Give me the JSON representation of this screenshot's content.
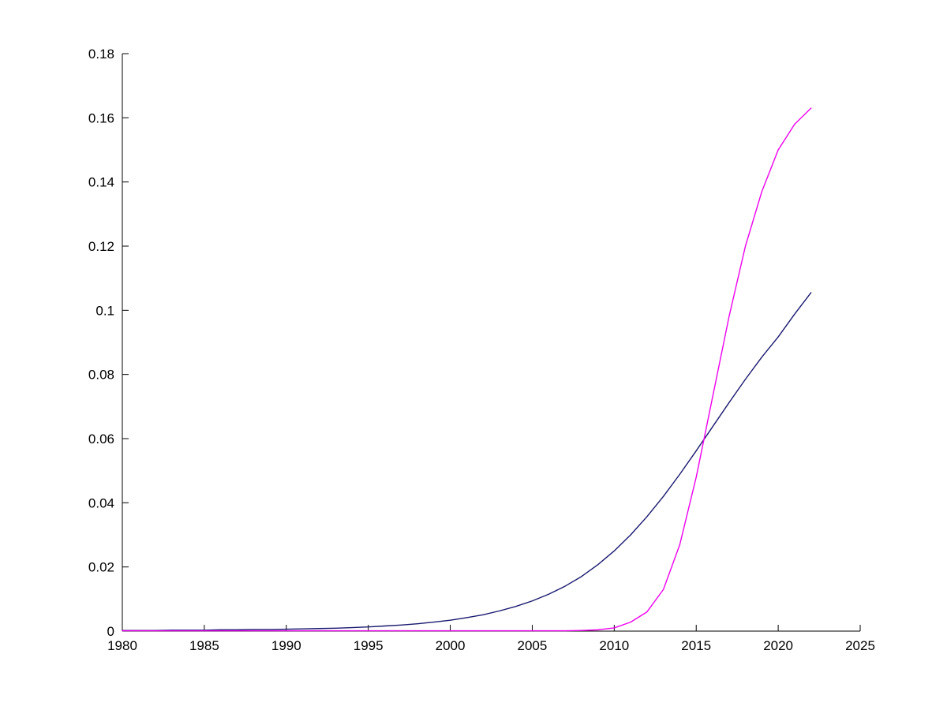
{
  "figure": {
    "background": "#ffffff",
    "axis_color": "#000000",
    "tick_length": 8
  },
  "chart_data": {
    "type": "line",
    "title": "",
    "xlabel": "",
    "ylabel": "",
    "xlim": [
      1980,
      2025
    ],
    "ylim": [
      0,
      0.18
    ],
    "grid": false,
    "legend": null,
    "x_ticks": [
      1980,
      1985,
      1990,
      1995,
      2000,
      2005,
      2010,
      2015,
      2020,
      2025
    ],
    "x_tick_labels": [
      "1980",
      "1985",
      "1990",
      "1995",
      "2000",
      "2005",
      "2010",
      "2015",
      "2020",
      "2025"
    ],
    "y_ticks": [
      0,
      0.02,
      0.04,
      0.06,
      0.08,
      0.1,
      0.12,
      0.14,
      0.16,
      0.18
    ],
    "y_tick_labels": [
      "0",
      "0.02",
      "0.04",
      "0.06",
      "0.08",
      "0.1",
      "0.12",
      "0.14",
      "0.16",
      "0.18"
    ],
    "x": [
      1980,
      1981,
      1982,
      1983,
      1984,
      1985,
      1986,
      1987,
      1988,
      1989,
      1990,
      1991,
      1992,
      1993,
      1994,
      1995,
      1996,
      1997,
      1998,
      1999,
      2000,
      2001,
      2002,
      2003,
      2004,
      2005,
      2006,
      2007,
      2008,
      2009,
      2010,
      2011,
      2012,
      2013,
      2014,
      2015,
      2016,
      2017,
      2018,
      2019,
      2020,
      2021,
      2022
    ],
    "series": [
      {
        "name": "dark-blue-curve",
        "color": "#191970",
        "values": [
          0.0002,
          0.0002,
          0.0002,
          0.0003,
          0.0003,
          0.0003,
          0.0004,
          0.0004,
          0.0005,
          0.0005,
          0.0006,
          0.0007,
          0.0008,
          0.0009,
          0.0011,
          0.0013,
          0.0016,
          0.0019,
          0.0023,
          0.0028,
          0.0034,
          0.0042,
          0.0051,
          0.0063,
          0.0077,
          0.0094,
          0.0115,
          0.014,
          0.017,
          0.0207,
          0.025,
          0.03,
          0.0357,
          0.042,
          0.0489,
          0.0562,
          0.0637,
          0.0712,
          0.0785,
          0.0854,
          0.0917,
          0.0988,
          0.1055
        ]
      },
      {
        "name": "magenta-curve",
        "color": "#EE00EE",
        "values": [
          0.0001,
          0.0001,
          0.0001,
          0.0001,
          0.0001,
          0.0001,
          0.0001,
          0.0001,
          0.0001,
          0.0001,
          0.0001,
          0.0001,
          0.0001,
          0.0001,
          0.0001,
          0.0001,
          0.0001,
          0.0001,
          0.0001,
          0.0001,
          0.0001,
          0.0001,
          0.0001,
          0.0001,
          0.0001,
          0.0001,
          0.0001,
          0.0001,
          0.0002,
          0.0004,
          0.001,
          0.0028,
          0.006,
          0.013,
          0.027,
          0.048,
          0.073,
          0.098,
          0.12,
          0.137,
          0.15,
          0.158,
          0.163
        ]
      }
    ]
  }
}
